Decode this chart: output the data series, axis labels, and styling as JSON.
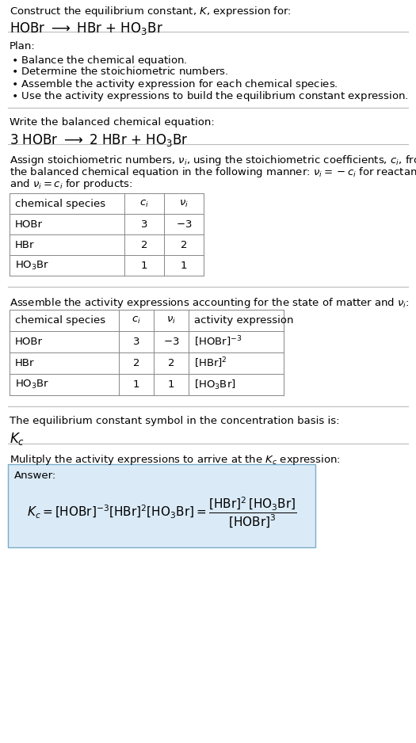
{
  "bg_color": "#ffffff",
  "text_color": "#000000",
  "sep_color": "#bbbbbb",
  "table_color": "#888888",
  "answer_bg": "#daeaf7",
  "answer_border": "#7aaec8",
  "title1": "Construct the equilibrium constant, $K$, expression for:",
  "title2": "HOBr $\\longrightarrow$ HBr + HO$_3$Br",
  "plan_header": "Plan:",
  "plan_items": [
    "\\textbullet  Balance the chemical equation.",
    "\\textbullet  Determine the stoichiometric numbers.",
    "\\textbullet  Assemble the activity expression for each chemical species.",
    "\\textbullet  Use the activity expressions to build the equilibrium constant expression."
  ],
  "sec2_header": "Write the balanced chemical equation:",
  "sec2_eq": "3 HOBr $\\longrightarrow$ 2 HBr + HO$_3$Br",
  "sec3_lines": [
    "Assign stoichiometric numbers, $\\nu_i$, using the stoichiometric coefficients, $c_i$, from",
    "the balanced chemical equation in the following manner: $\\nu_i = -c_i$ for reactants",
    "and $\\nu_i = c_i$ for products:"
  ],
  "table1_header": [
    "chemical species",
    "$c_i$",
    "$\\nu_i$"
  ],
  "table1_rows": [
    [
      "HOBr",
      "3",
      "$-3$"
    ],
    [
      "HBr",
      "2",
      "2"
    ],
    [
      "HO$_3$Br",
      "1",
      "1"
    ]
  ],
  "sec4_header": "Assemble the activity expressions accounting for the state of matter and $\\nu_i$:",
  "table2_header": [
    "chemical species",
    "$c_i$",
    "$\\nu_i$",
    "activity expression"
  ],
  "table2_rows": [
    [
      "HOBr",
      "3",
      "$-3$",
      "$[\\mathrm{HOBr}]^{-3}$"
    ],
    [
      "HBr",
      "2",
      "2",
      "$[\\mathrm{HBr}]^{2}$"
    ],
    [
      "HO$_3$Br",
      "1",
      "1",
      "$[\\mathrm{HO_3Br}]$"
    ]
  ],
  "sec5_header": "The equilibrium constant symbol in the concentration basis is:",
  "sec5_sym": "$K_c$",
  "sec6_header": "Mulitply the activity expressions to arrive at the $K_c$ expression:",
  "answer_label": "Answer:",
  "answer_eq_left": "$K_c = [\\mathrm{HOBr}]^{-3}\\,[\\mathrm{HBr}]^{2}\\,[\\mathrm{HO_3Br}] = $",
  "answer_eq_frac": "$\\dfrac{[\\mathrm{HBr}]^{2}\\,[\\mathrm{HO_3Br}]}{[\\mathrm{HOBr}]^{3}}$"
}
